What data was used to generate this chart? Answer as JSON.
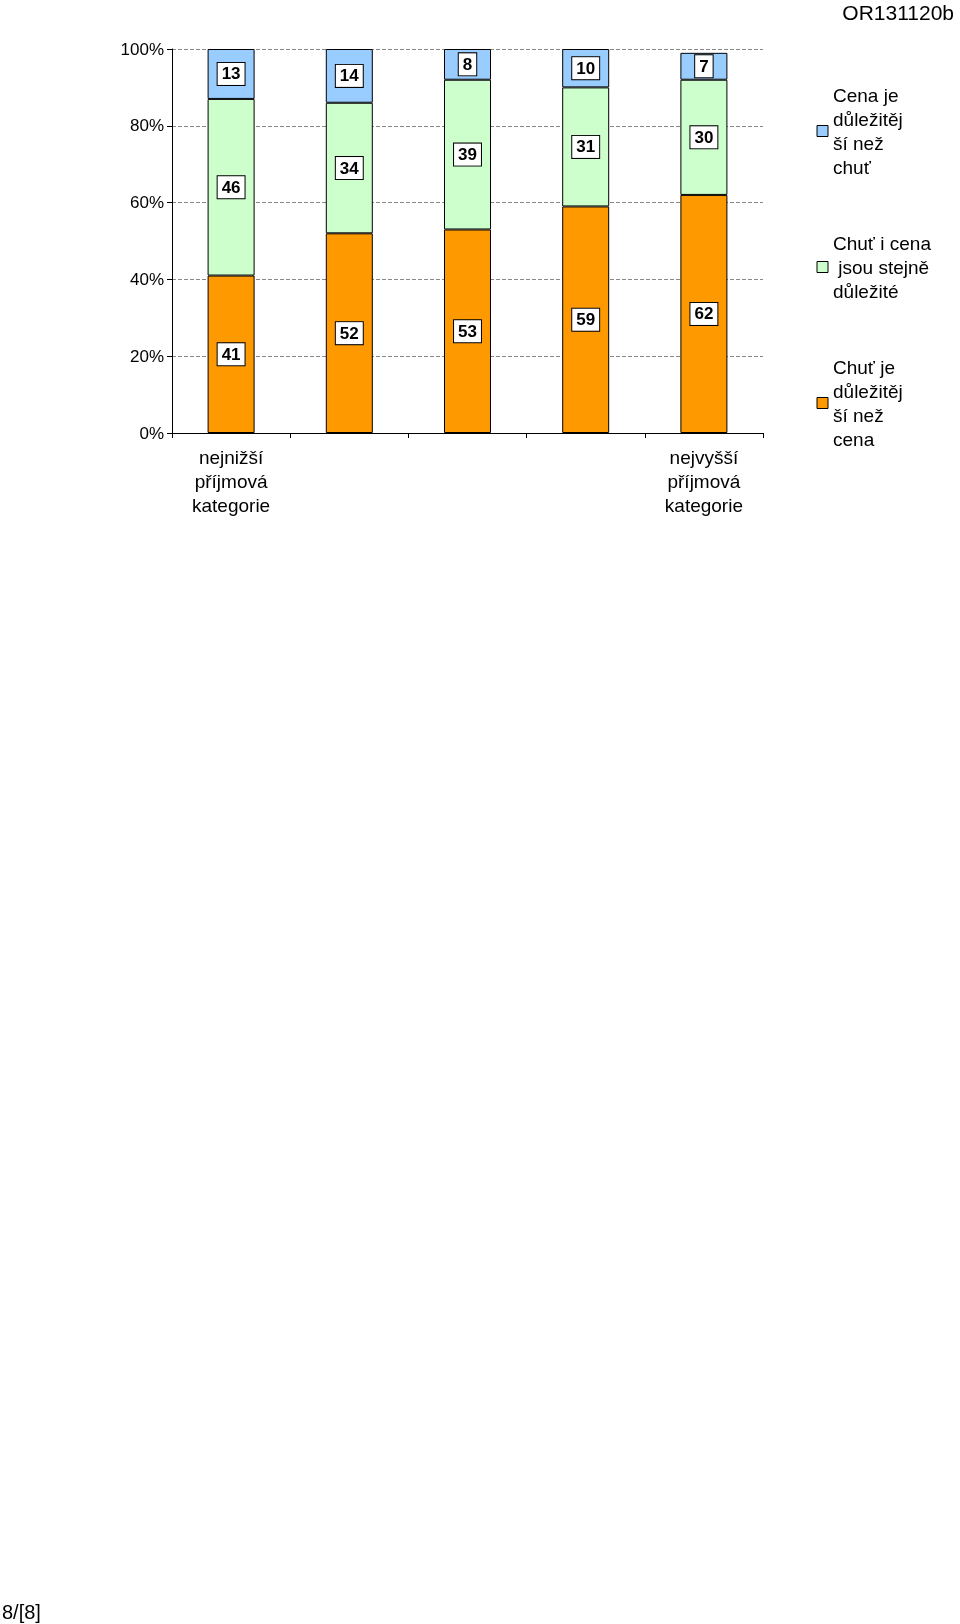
{
  "chart_data": {
    "type": "bar",
    "stacked": true,
    "categories": [
      "nejnižší příjmová kategorie",
      null,
      null,
      null,
      "nejvyšší příjmová kategorie"
    ],
    "series": [
      {
        "name": "Chuť je důležitější než cena",
        "color": "#ff9900",
        "values": [
          41,
          52,
          53,
          59,
          62
        ]
      },
      {
        "name": "Chuť i cena jsou stejně důležité",
        "color": "#ccffcc",
        "values": [
          46,
          34,
          39,
          31,
          30
        ]
      },
      {
        "name": "Cena je důležitější než chuť",
        "color": "#99ccff",
        "values": [
          13,
          14,
          8,
          10,
          7
        ]
      }
    ],
    "ylim": [
      0,
      100
    ],
    "yticks": [
      {
        "value": 0,
        "label": "0%"
      },
      {
        "value": 20,
        "label": "20%"
      },
      {
        "value": 40,
        "label": "40%"
      },
      {
        "value": 60,
        "label": "60%"
      },
      {
        "value": 80,
        "label": "80%"
      },
      {
        "value": 100,
        "label": "100%"
      }
    ],
    "grid": "y",
    "legend": "right",
    "data_labels": true,
    "annotations": [
      "OR131120b",
      "8/[8]"
    ]
  }
}
